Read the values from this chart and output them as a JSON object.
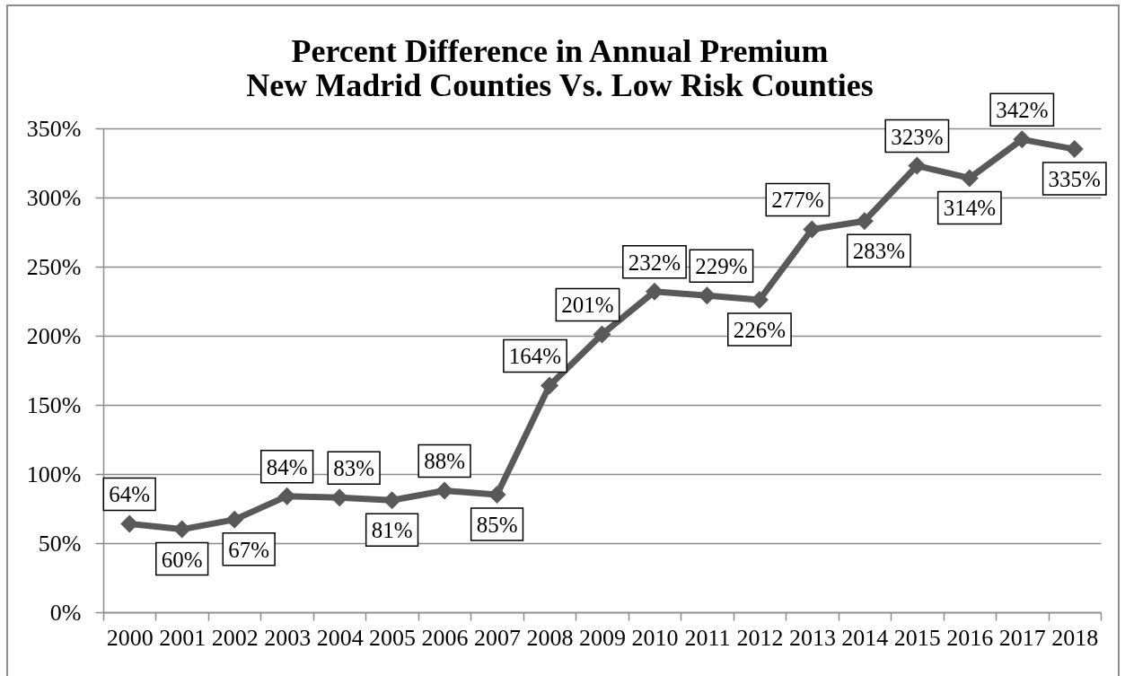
{
  "chart_data": {
    "type": "line",
    "title": "Percent Difference in Annual Premium",
    "subtitle": "New Madrid Counties Vs. Low Risk Counties",
    "categories": [
      "2000",
      "2001",
      "2002",
      "2003",
      "2004",
      "2005",
      "2006",
      "2007",
      "2008",
      "2009",
      "2010",
      "2011",
      "2012",
      "2013",
      "2014",
      "2015",
      "2016",
      "2017",
      "2018"
    ],
    "values": [
      64,
      60,
      67,
      84,
      83,
      81,
      88,
      85,
      164,
      201,
      232,
      229,
      226,
      277,
      283,
      323,
      314,
      342,
      335
    ],
    "value_labels": [
      "64%",
      "60%",
      "67%",
      "84%",
      "83%",
      "81%",
      "88%",
      "85%",
      "164%",
      "201%",
      "232%",
      "229%",
      "226%",
      "277%",
      "283%",
      "323%",
      "314%",
      "342%",
      "335%"
    ],
    "color": "#595959",
    "marker": "diamond",
    "ylim": [
      0,
      350
    ],
    "yticks": [
      {
        "value": 0,
        "label": "0%"
      },
      {
        "value": 50,
        "label": "50%"
      },
      {
        "value": 100,
        "label": "100%"
      },
      {
        "value": 150,
        "label": "150%"
      },
      {
        "value": 200,
        "label": "200%"
      },
      {
        "value": 250,
        "label": "250%"
      },
      {
        "value": 300,
        "label": "300%"
      },
      {
        "value": 350,
        "label": "350%"
      }
    ],
    "grid": "y"
  }
}
